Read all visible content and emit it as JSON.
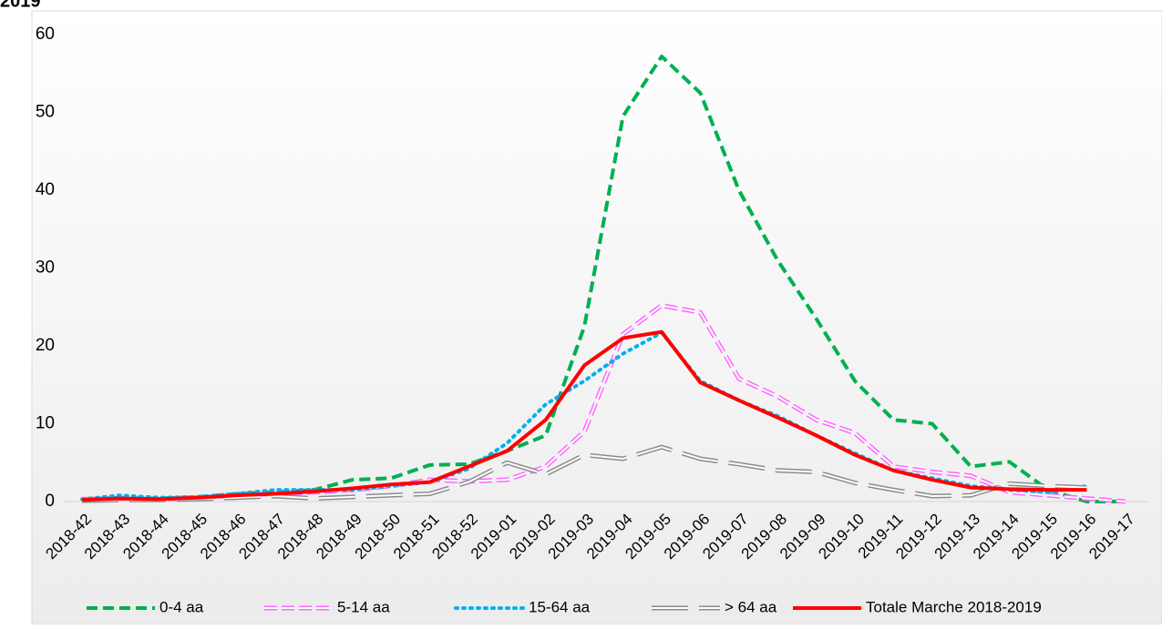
{
  "chart_data": {
    "type": "line",
    "title": "2019",
    "categories": [
      "2018-42",
      "2018-43",
      "2018-44",
      "2018-45",
      "2018-46",
      "2018-47",
      "2018-48",
      "2018-49",
      "2018-50",
      "2018-51",
      "2018-52",
      "2019-01",
      "2019-02",
      "2019-03",
      "2019-04",
      "2019-05",
      "2019-06",
      "2019-07",
      "2019-08",
      "2019-09",
      "2019-10",
      "2019-11",
      "2019-12",
      "2019-13",
      "2019-14",
      "2019-15",
      "2019-16",
      "2019-17"
    ],
    "series": [
      {
        "name": "0-4 aa",
        "color": "#00b050",
        "values": [
          0.3,
          0.5,
          0.4,
          0.6,
          1.0,
          1.2,
          1.5,
          2.8,
          3.0,
          4.7,
          4.8,
          6.5,
          8.5,
          22.5,
          49.5,
          57.2,
          52.5,
          40,
          31,
          23.5,
          15.5,
          10.5,
          10.0,
          4.5,
          5.1,
          1.5,
          0,
          0
        ]
      },
      {
        "name": "5-14 aa",
        "color": "#ff66ff",
        "values": [
          0.3,
          0.4,
          0.3,
          0.5,
          0.8,
          1.0,
          1.2,
          1.5,
          2.0,
          2.8,
          2.6,
          2.8,
          4.5,
          9,
          21.5,
          25.2,
          24.3,
          15.8,
          13.5,
          10.5,
          8.8,
          4.5,
          3.8,
          3.3,
          1.2,
          0.8,
          0.4,
          0
        ]
      },
      {
        "name": "15-64 aa",
        "color": "#00b0f0",
        "values": [
          0.3,
          0.8,
          0.5,
          0.6,
          1.0,
          1.5,
          1.5,
          1.5,
          2.0,
          2.5,
          4.2,
          7.5,
          12.5,
          15.5,
          19,
          21.7,
          15.5,
          13,
          11,
          8.5,
          6.2,
          4,
          3,
          2,
          1.5,
          1.2,
          2,
          null
        ]
      },
      {
        "name": "> 64 aa",
        "color": "#8c8c8c",
        "values": [
          0.1,
          0.2,
          0.2,
          0.3,
          0.5,
          0.7,
          0.4,
          0.6,
          0.8,
          1.0,
          2.5,
          5.0,
          3.5,
          6,
          5.5,
          7,
          5.5,
          4.8,
          4,
          3.8,
          2.4,
          1.5,
          0.7,
          0.8,
          2.3,
          2.0,
          1.8,
          null
        ]
      },
      {
        "name": "Totale Marche 2018-2019",
        "color": "#ff0000",
        "values": [
          0.2,
          0.4,
          0.3,
          0.5,
          0.8,
          1.0,
          1.3,
          1.7,
          2.2,
          2.5,
          4.5,
          6.5,
          10.5,
          17.5,
          21,
          21.8,
          15.3,
          13,
          10.8,
          8.5,
          6,
          4,
          2.8,
          1.8,
          1.6,
          1.5,
          1.5,
          null
        ]
      }
    ],
    "ylim": [
      0,
      60
    ],
    "yticks": [
      0,
      10,
      20,
      30,
      40,
      50,
      60
    ],
    "legend": "bottom"
  }
}
